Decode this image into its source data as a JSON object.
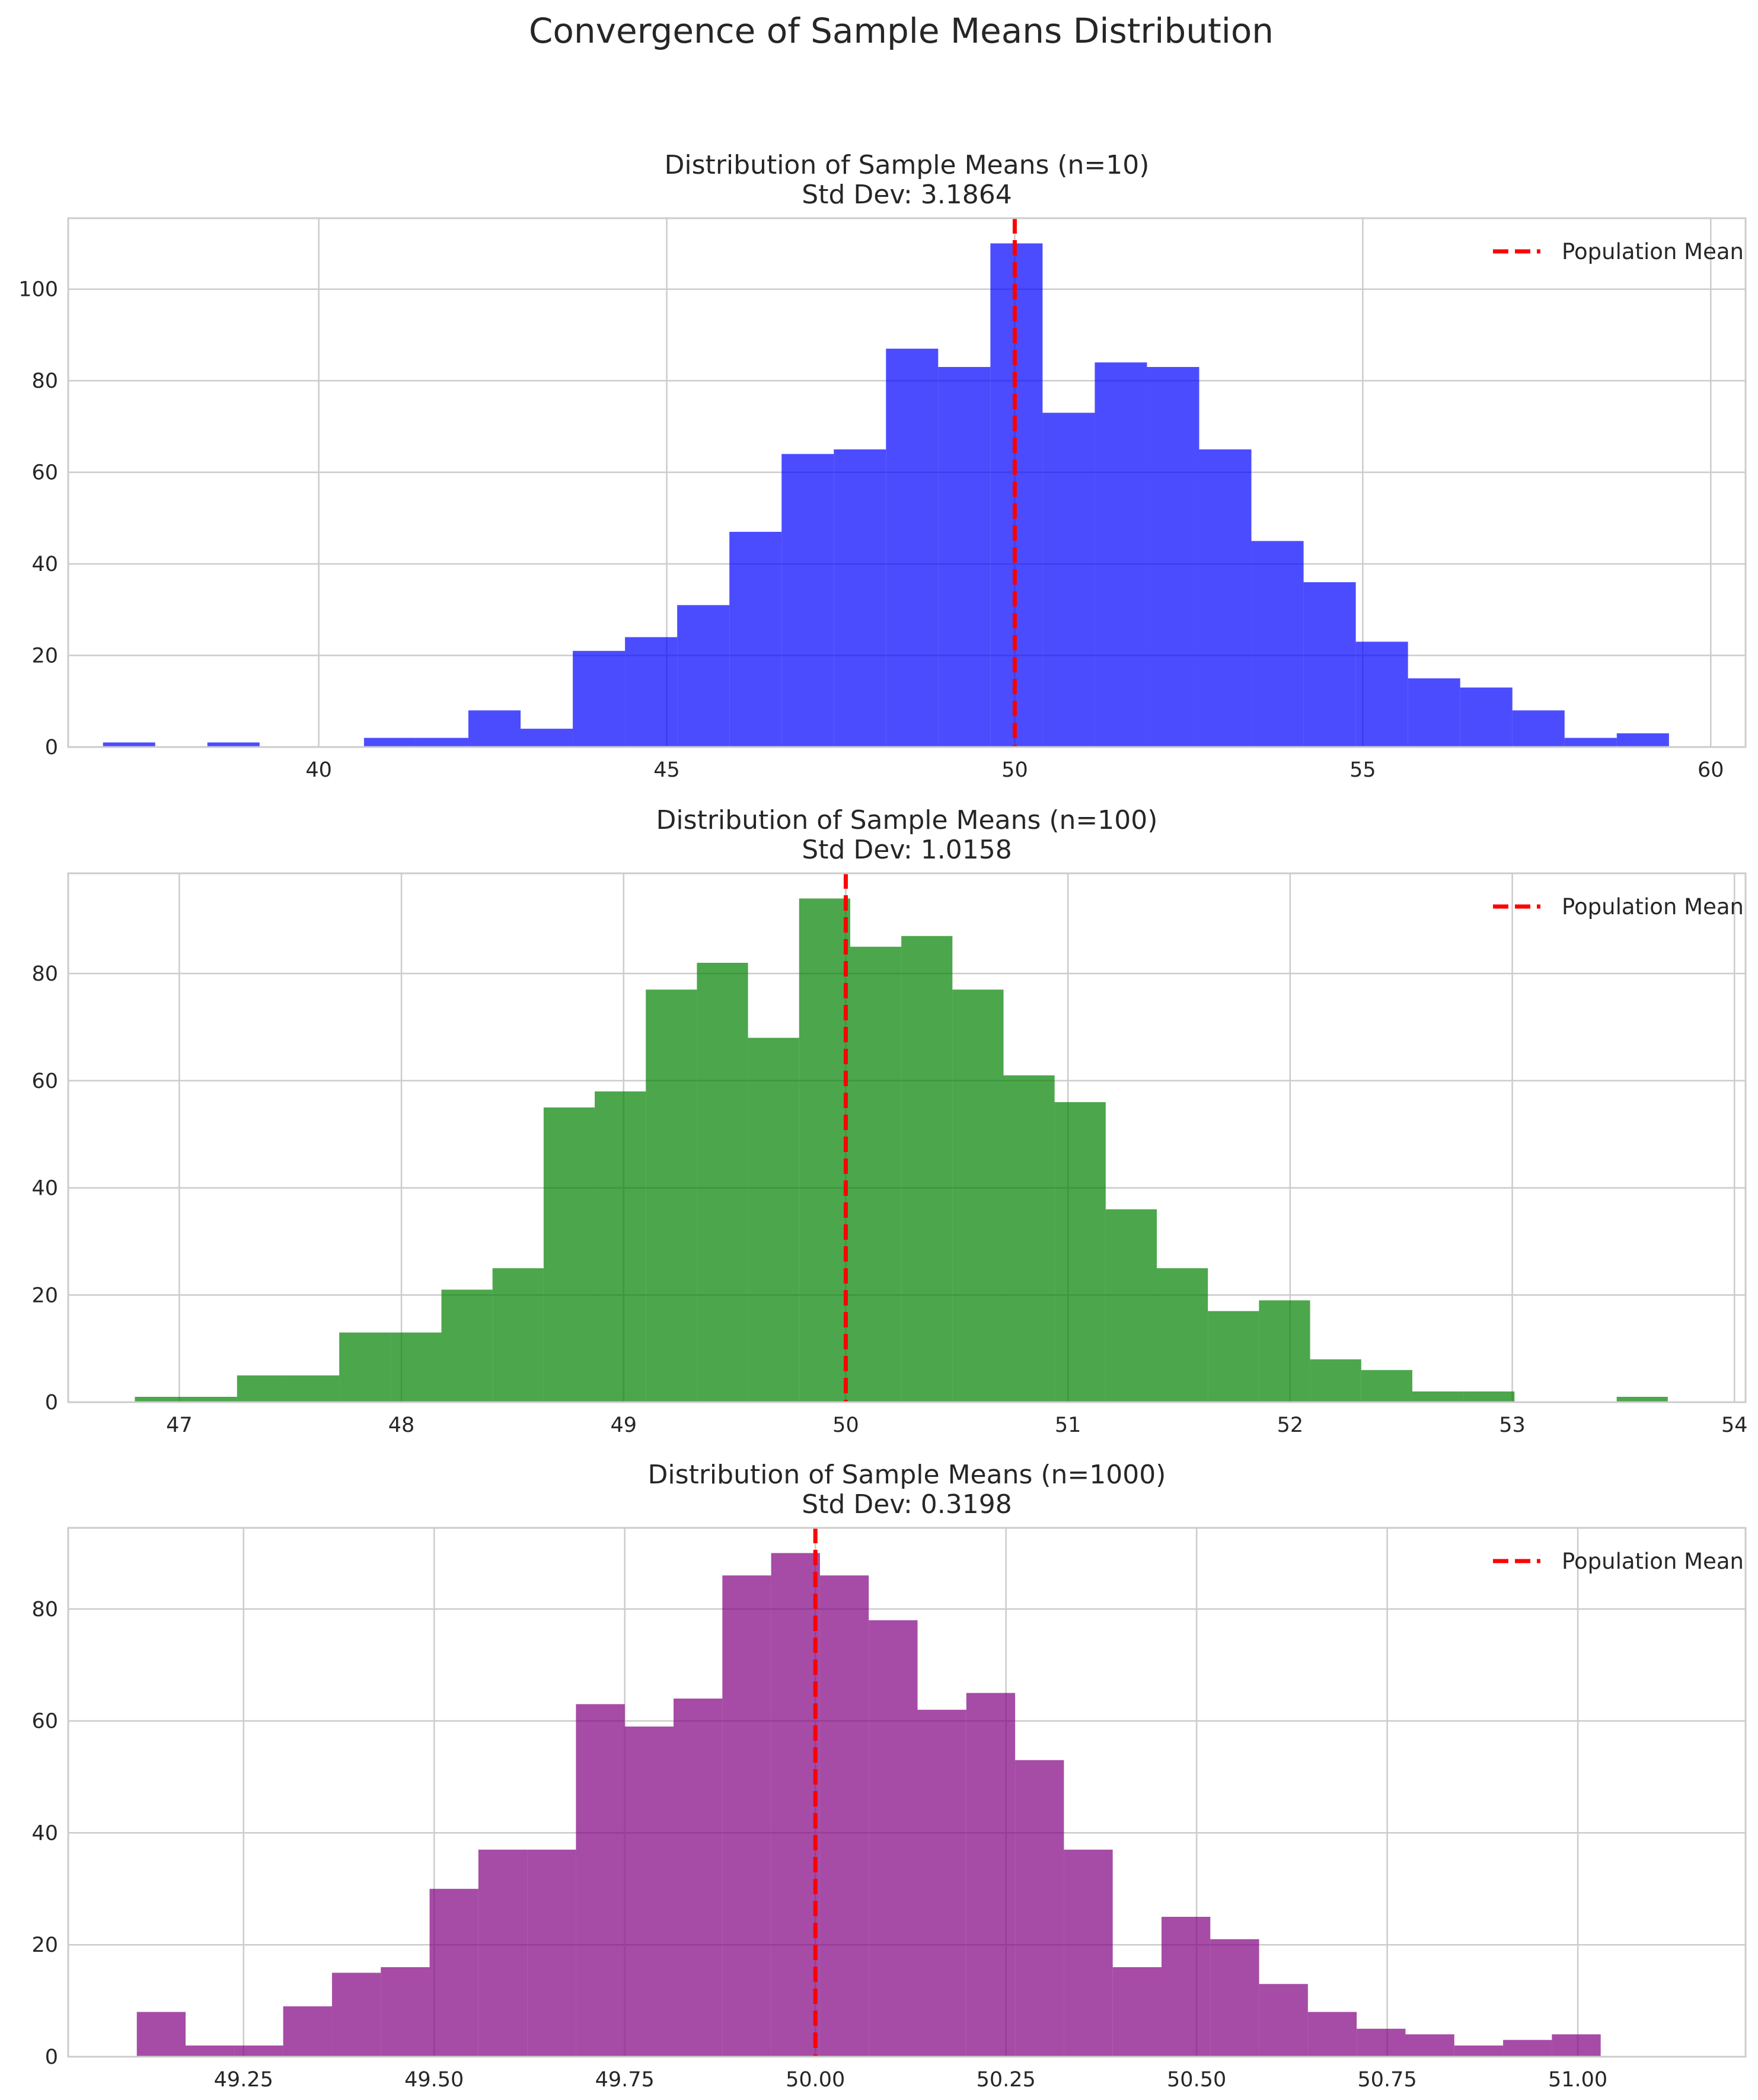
{
  "figure": {
    "suptitle": "Convergence of Sample Means Distribution"
  },
  "chart_data": [
    {
      "type": "bar",
      "title": "Distribution of Sample Means (n=10)",
      "subtitle": "Std Dev: 3.1864",
      "xlabel": "",
      "ylabel": "",
      "bar_color": "#0000ff",
      "bin_start": 36.9,
      "bin_width": 0.75,
      "values": [
        1,
        0,
        1,
        0,
        0,
        2,
        2,
        8,
        4,
        21,
        24,
        31,
        47,
        64,
        65,
        87,
        83,
        110,
        73,
        84,
        83,
        65,
        45,
        36,
        23,
        15,
        13,
        8,
        2,
        3
      ],
      "xlim": [
        36.4,
        60.5
      ],
      "ylim": [
        0,
        115.5
      ],
      "xticks": [
        40,
        45,
        50,
        55,
        60
      ],
      "xtick_labels": [
        "40",
        "45",
        "50",
        "55",
        "60"
      ],
      "yticks": [
        0,
        20,
        40,
        60,
        80,
        100
      ],
      "ytick_labels": [
        "0",
        "20",
        "40",
        "60",
        "80",
        "100"
      ],
      "mean_line": 50,
      "legend": {
        "label": "Population Mean",
        "placement": "upper right",
        "color": "#ff0000"
      },
      "grid": true
    },
    {
      "type": "bar",
      "title": "Distribution of Sample Means (n=100)",
      "subtitle": "Std Dev: 1.0158",
      "xlabel": "",
      "ylabel": "",
      "bar_color": "#008000",
      "bin_start": 46.8,
      "bin_width": 0.23,
      "values": [
        1,
        1,
        5,
        5,
        13,
        13,
        21,
        25,
        55,
        58,
        77,
        82,
        68,
        94,
        85,
        87,
        77,
        61,
        56,
        36,
        25,
        17,
        19,
        8,
        6,
        2,
        2,
        0,
        0,
        1
      ],
      "xlim": [
        46.5,
        54.05
      ],
      "ylim": [
        0,
        98.7
      ],
      "xticks": [
        47,
        48,
        49,
        50,
        51,
        52,
        53,
        54
      ],
      "xtick_labels": [
        "47",
        "48",
        "49",
        "50",
        "51",
        "52",
        "53",
        "54"
      ],
      "yticks": [
        0,
        20,
        40,
        60,
        80
      ],
      "ytick_labels": [
        "0",
        "20",
        "40",
        "60",
        "80"
      ],
      "mean_line": 50,
      "legend": {
        "label": "Population Mean",
        "placement": "upper right",
        "color": "#ff0000"
      },
      "grid": true
    },
    {
      "type": "bar",
      "title": "Distribution of Sample Means (n=1000)",
      "subtitle": "Std Dev: 0.3198",
      "xlabel": "",
      "ylabel": "",
      "bar_color": "#800080",
      "bin_start": 49.11,
      "bin_width": 0.064,
      "values": [
        8,
        2,
        2,
        9,
        15,
        16,
        30,
        37,
        37,
        63,
        59,
        64,
        86,
        90,
        86,
        78,
        62,
        65,
        53,
        37,
        16,
        25,
        21,
        13,
        8,
        5,
        4,
        2,
        3,
        4
      ],
      "xlim": [
        49.02,
        51.22
      ],
      "ylim": [
        0,
        94.5
      ],
      "xticks": [
        49.25,
        49.5,
        49.75,
        50.0,
        50.25,
        50.5,
        50.75,
        51.0
      ],
      "xtick_labels": [
        "49.25",
        "49.50",
        "49.75",
        "50.00",
        "50.25",
        "50.50",
        "50.75",
        "51.00"
      ],
      "yticks": [
        0,
        20,
        40,
        60,
        80
      ],
      "ytick_labels": [
        "0",
        "20",
        "40",
        "60",
        "80"
      ],
      "mean_line": 50,
      "legend": {
        "label": "Population Mean",
        "placement": "upper right",
        "color": "#ff0000"
      },
      "grid": true
    }
  ]
}
